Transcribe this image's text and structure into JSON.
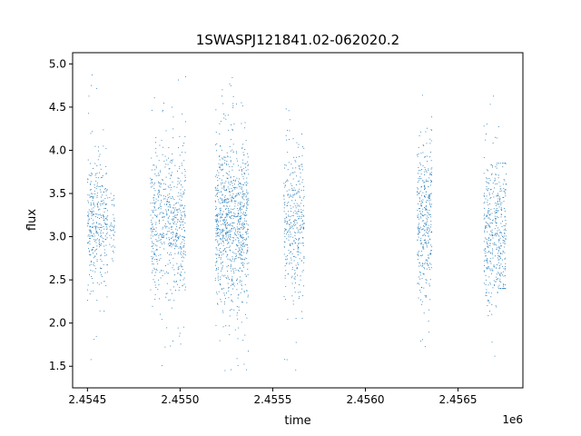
{
  "chart_data": {
    "type": "scatter",
    "title": "1SWASPJ121841.02-062020.2",
    "xlabel": "time",
    "ylabel": "flux",
    "x_offset_label": "1e6",
    "xlim": [
      2454420,
      2456850
    ],
    "ylim": [
      1.25,
      5.13
    ],
    "x_ticks": [
      {
        "value": 2454500,
        "label": "2.4545"
      },
      {
        "value": 2455000,
        "label": "2.4550"
      },
      {
        "value": 2455500,
        "label": "2.4555"
      },
      {
        "value": 2456000,
        "label": "2.4560"
      },
      {
        "value": 2456500,
        "label": "2.4565"
      }
    ],
    "y_ticks": [
      {
        "value": 1.5,
        "label": "1.5"
      },
      {
        "value": 2.0,
        "label": "2.0"
      },
      {
        "value": 2.5,
        "label": "2.5"
      },
      {
        "value": 3.0,
        "label": "3.0"
      },
      {
        "value": 3.5,
        "label": "3.5"
      },
      {
        "value": 4.0,
        "label": "4.0"
      },
      {
        "value": 4.5,
        "label": "4.5"
      },
      {
        "value": 5.0,
        "label": "5.0"
      }
    ],
    "grid": false,
    "legend": "none",
    "series": [
      {
        "color": "#1f77b4",
        "observing_seasons": [
          {
            "x_start": 2454500,
            "x_end": 2454610,
            "flux_core": [
              2.65,
              3.65
            ],
            "flux_range": [
              1.45,
              4.98
            ],
            "density": 350
          },
          {
            "x_start": 2454620,
            "x_end": 2454650,
            "flux_core": [
              2.8,
              3.4
            ],
            "flux_range": [
              2.7,
              3.5
            ],
            "density": 40
          },
          {
            "x_start": 2454840,
            "x_end": 2455030,
            "flux_core": [
              2.6,
              3.7
            ],
            "flux_range": [
              1.45,
              4.9
            ],
            "density": 600
          },
          {
            "x_start": 2455190,
            "x_end": 2455370,
            "flux_core": [
              2.55,
              3.75
            ],
            "flux_range": [
              1.45,
              4.85
            ],
            "density": 900
          },
          {
            "x_start": 2455560,
            "x_end": 2455670,
            "flux_core": [
              2.6,
              3.65
            ],
            "flux_range": [
              1.42,
              4.55
            ],
            "density": 350
          },
          {
            "x_start": 2456280,
            "x_end": 2456360,
            "flux_core": [
              2.6,
              3.75
            ],
            "flux_range": [
              1.55,
              4.82
            ],
            "density": 350
          },
          {
            "x_start": 2456640,
            "x_end": 2456720,
            "flux_core": [
              2.55,
              3.65
            ],
            "flux_range": [
              1.45,
              4.92
            ],
            "density": 300
          },
          {
            "x_start": 2456720,
            "x_end": 2456760,
            "flux_core": [
              2.5,
              3.7
            ],
            "flux_range": [
              2.4,
              3.85
            ],
            "density": 150
          }
        ]
      }
    ]
  }
}
